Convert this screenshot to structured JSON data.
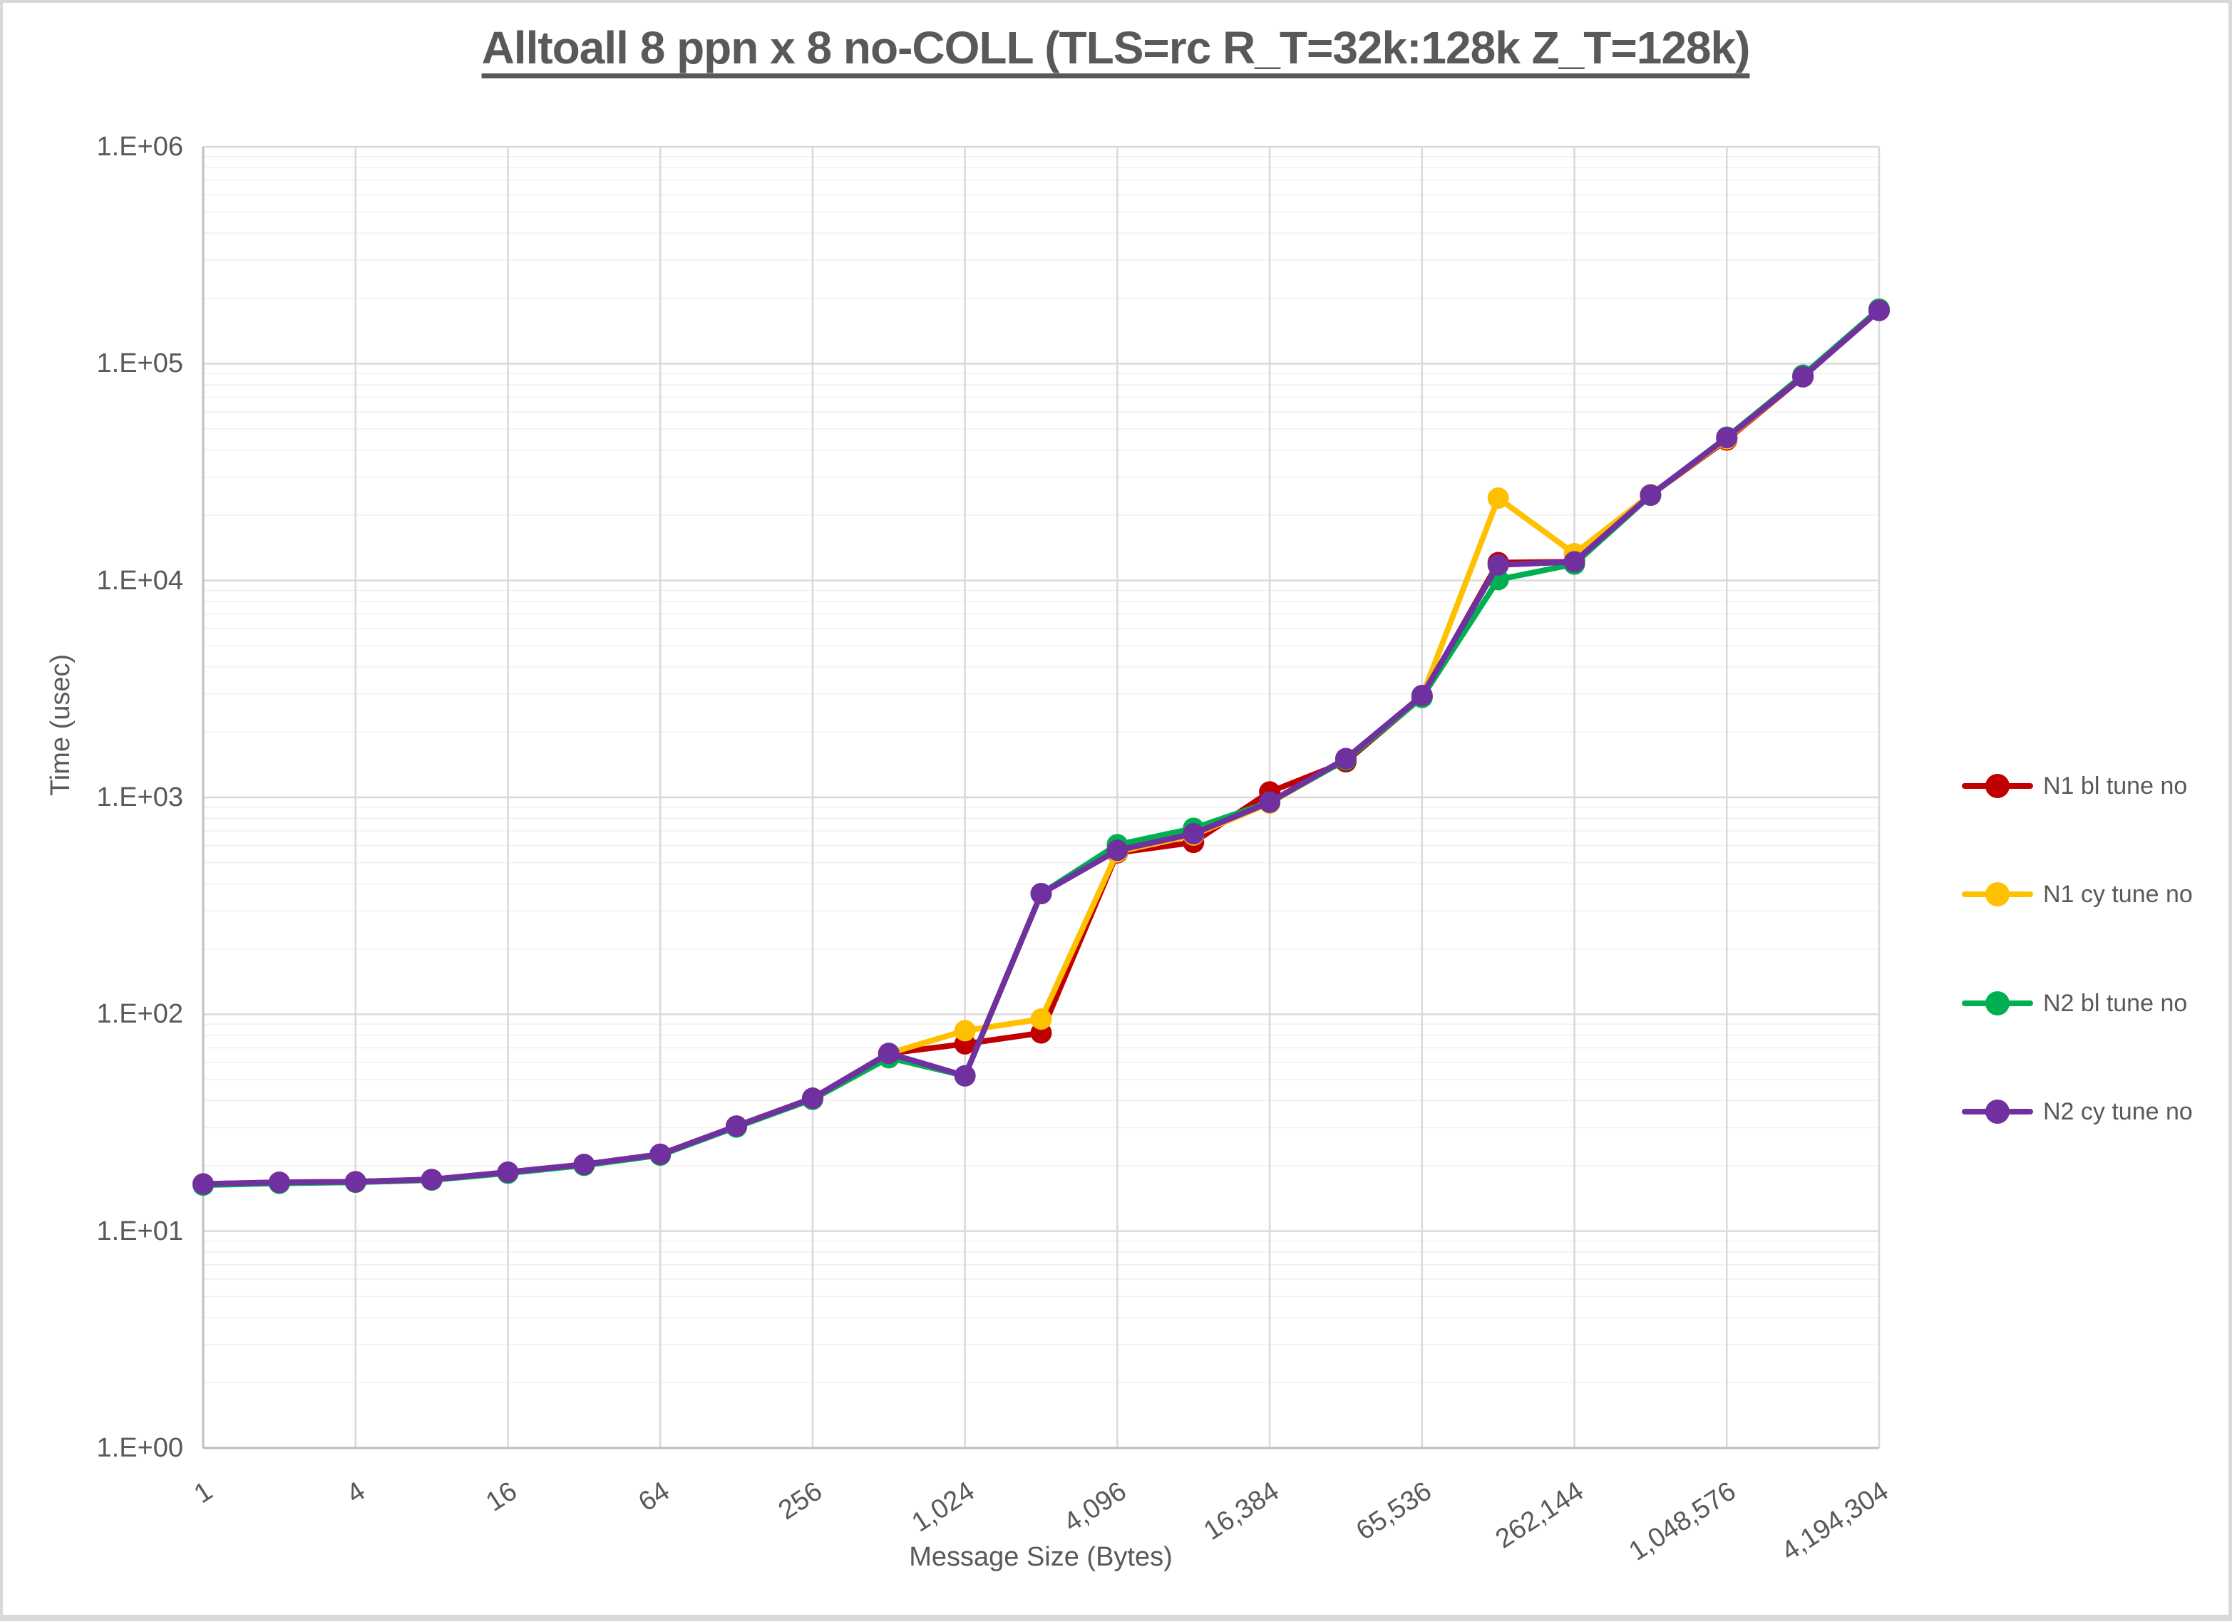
{
  "title": "Alltoall 8 ppn x 8 no-COLL (TLS=rc R_T=32k:128k Z_T=128k)",
  "y_axis": {
    "label": "Time (usec)",
    "tick_labels": [
      "1.E+00",
      "1.E+01",
      "1.E+02",
      "1.E+03",
      "1.E+04",
      "1.E+05",
      "1.E+06"
    ]
  },
  "x_axis": {
    "label": "Message Size (Bytes)",
    "tick_labels": [
      "1",
      "4",
      "16",
      "64",
      "256",
      "1,024",
      "4,096",
      "16,384",
      "65,536",
      "262,144",
      "1,048,576",
      "4,194,304"
    ]
  },
  "legend": {
    "items": [
      {
        "label": "N1 bl tune no",
        "color": "#C00000"
      },
      {
        "label": "N1 cy tune no",
        "color": "#FFC000"
      },
      {
        "label": "N2 bl tune no",
        "color": "#00B050"
      },
      {
        "label": "N2 cy tune no",
        "color": "#7030A0"
      }
    ]
  },
  "colors": {
    "text": "#595959",
    "axis_line": "#BFBFBF",
    "grid_major": "#D9D9D9",
    "grid_minor": "#F0F0F0",
    "background": "#FFFFFF"
  },
  "chart_data": {
    "type": "line",
    "x_scale": "log2",
    "y_scale": "log10",
    "ylim": [
      1,
      1000000
    ],
    "grid": true,
    "legend_position": "right",
    "title": "Alltoall 8 ppn x 8 no-COLL (TLS=rc R_T=32k:128k Z_T=128k)",
    "xlabel": "Message Size (Bytes)",
    "ylabel": "Time (usec)",
    "categories": [
      1,
      2,
      4,
      8,
      16,
      32,
      64,
      128,
      256,
      512,
      1024,
      2048,
      4096,
      8192,
      16384,
      32768,
      65536,
      131072,
      262144,
      524288,
      1048576,
      2097152,
      4194304
    ],
    "series": [
      {
        "name": "N1 bl tune no",
        "color": "#C00000",
        "values": [
          16.5,
          16.8,
          16.9,
          17.3,
          18.7,
          20.3,
          22.6,
          30.5,
          41,
          66,
          73,
          82,
          555,
          620,
          1060,
          1460,
          2900,
          12100,
          12200,
          24800,
          44500,
          87000,
          176000
        ]
      },
      {
        "name": "N1 cy tune no",
        "color": "#FFC000",
        "values": [
          16.4,
          16.7,
          16.8,
          17.2,
          18.6,
          20.2,
          22.5,
          30.3,
          40.8,
          66,
          84,
          95,
          560,
          670,
          940,
          1500,
          2920,
          24000,
          13300,
          24900,
          45000,
          87500,
          177000
        ]
      },
      {
        "name": "N2 bl tune no",
        "color": "#00B050",
        "values": [
          16.3,
          16.6,
          16.8,
          17.2,
          18.5,
          20.1,
          22.4,
          30.2,
          40.5,
          63,
          52,
          360,
          605,
          720,
          950,
          1490,
          2890,
          10100,
          11900,
          24700,
          45800,
          88500,
          178500
        ]
      },
      {
        "name": "N2 cy tune no",
        "color": "#7030A0",
        "values": [
          16.5,
          16.8,
          16.9,
          17.3,
          18.7,
          20.3,
          22.6,
          30.5,
          41,
          66,
          52,
          360,
          570,
          680,
          950,
          1510,
          2950,
          11800,
          12200,
          24800,
          45600,
          87000,
          176000
        ]
      }
    ]
  }
}
